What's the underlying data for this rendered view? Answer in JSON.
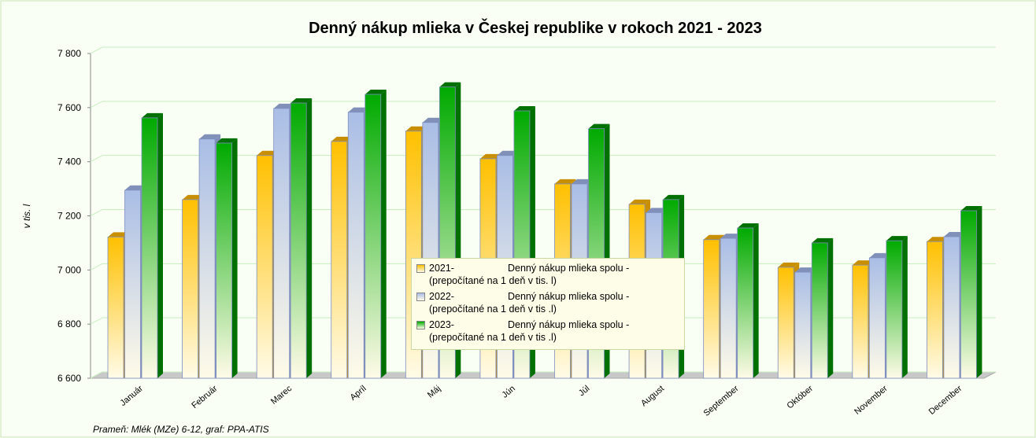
{
  "chart_data": {
    "type": "bar3d",
    "title": "Denný nákup mlieka v Českej republike v rokoch 2021 - 2023",
    "y_label": "v tis. l",
    "source": "Prameň: Mlék (MZe) 6-12, graf: PPA-ATIS",
    "categories": [
      "Január",
      "Február",
      "Marec",
      "Apríl",
      "Máj",
      "Jún",
      "Júl",
      "August",
      "September",
      "Október",
      "November",
      "December"
    ],
    "series": [
      {
        "name": "2021-\tDenný nákup mlieka spolu -\n(prepočítané na 1 deň v tis. l)",
        "color": "#ffc000",
        "values": [
          7122,
          7260,
          7423,
          7475,
          7513,
          7411,
          7318,
          7243,
          7112,
          7010,
          7018,
          7105
        ]
      },
      {
        "name": "2022-\tDenný nákup mlieka spolu -\n(prepočítané na 1 deň v tis .l)",
        "color": "#a9bde6",
        "values": [
          7295,
          7484,
          7597,
          7583,
          7545,
          7423,
          7318,
          7212,
          7117,
          6992,
          7045,
          7123
        ]
      },
      {
        "name": "2023-\tDenný nákup mlieka spolu -\n(prepočítané na 1 deň v tis .l)",
        "color": "#00aa00",
        "values": [
          7562,
          7469,
          7617,
          7649,
          7676,
          7588,
          7522,
          7260,
          7155,
          7100,
          7108,
          7219
        ]
      }
    ],
    "ylim": [
      6600,
      7800
    ],
    "yticks": [
      {
        "value": 6600,
        "label": "6 600"
      },
      {
        "value": 6800,
        "label": "6 800"
      },
      {
        "value": 7000,
        "label": "7 000"
      },
      {
        "value": 7200,
        "label": "7 200"
      },
      {
        "value": 7400,
        "label": "7 400"
      },
      {
        "value": 7600,
        "label": "7 600"
      },
      {
        "value": 7800,
        "label": "7 800"
      }
    ],
    "grid": true
  }
}
